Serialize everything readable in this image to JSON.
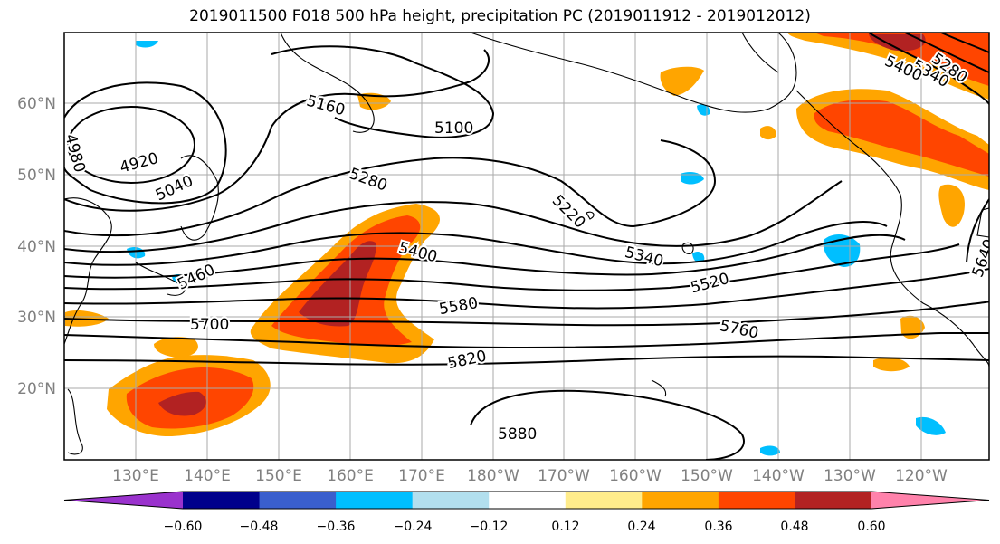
{
  "title": "2019011500 F018 500 hPa height, precipitation PC (2019011912 - 2019012012)",
  "lat_labels": [
    "60°N",
    "50°N",
    "40°N",
    "30°N",
    "20°N"
  ],
  "lon_labels": [
    "130°E",
    "140°E",
    "150°E",
    "160°E",
    "170°E",
    "180°W",
    "170°W",
    "160°W",
    "150°W",
    "140°W",
    "130°W",
    "120°W"
  ],
  "contour_labels": [
    "4980",
    "4920",
    "5040",
    "5160",
    "5100",
    "5280",
    "5220",
    "5400",
    "5340",
    "5460",
    "5520",
    "5580",
    "5700",
    "5760",
    "5820",
    "5880",
    "5640",
    "5280",
    "5340",
    "5400"
  ],
  "colorbar": {
    "tick_labels": [
      "−0.60",
      "−0.48",
      "−0.36",
      "−0.24",
      "−0.12",
      "0.12",
      "0.24",
      "0.36",
      "0.48",
      "0.60"
    ],
    "colors": [
      "#9a32cd",
      "#00008b",
      "#3a5fcd",
      "#00bfff",
      "#b2dfee",
      "#ffffff",
      "#ffec8b",
      "#ffa500",
      "#ff4500",
      "#b22222",
      "#ff82ab"
    ]
  }
}
